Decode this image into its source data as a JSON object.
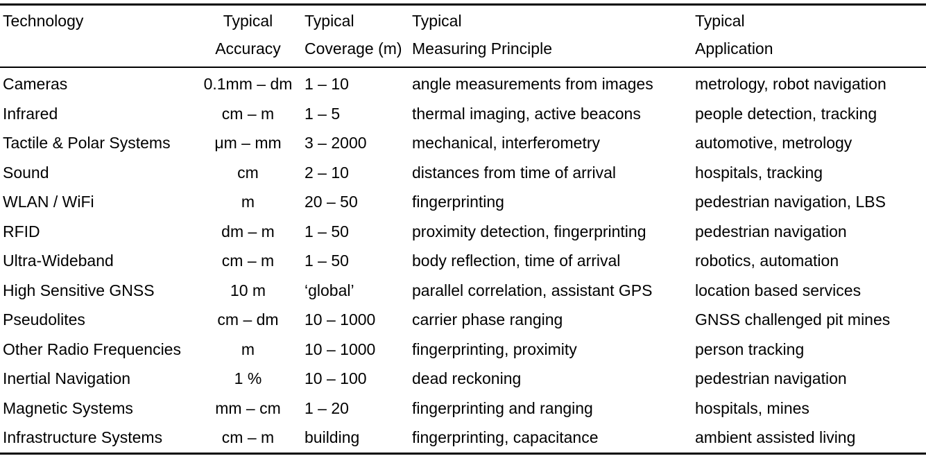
{
  "table": {
    "headers": [
      {
        "line1": "Technology",
        "line2": ""
      },
      {
        "line1": "Typical",
        "line2": "Accuracy"
      },
      {
        "line1": "Typical",
        "line2": "Coverage (m)"
      },
      {
        "line1": "Typical",
        "line2": "Measuring Principle"
      },
      {
        "line1": "Typical",
        "line2": "Application"
      }
    ],
    "rows": [
      [
        "Cameras",
        "0.1mm – dm",
        "1 – 10",
        "angle measurements from images",
        "metrology, robot navigation"
      ],
      [
        "Infrared",
        "cm – m",
        "1 – 5",
        "thermal imaging, active beacons",
        "people detection, tracking"
      ],
      [
        "Tactile & Polar Systems",
        "μm – mm",
        "3 – 2000",
        "mechanical, interferometry",
        "automotive, metrology"
      ],
      [
        "Sound",
        "cm",
        "2 – 10",
        "distances from time of arrival",
        "hospitals, tracking"
      ],
      [
        "WLAN / WiFi",
        "m",
        "20 – 50",
        "fingerprinting",
        "pedestrian navigation, LBS"
      ],
      [
        "RFID",
        "dm – m",
        "1 – 50",
        "proximity detection, fingerprinting",
        "pedestrian navigation"
      ],
      [
        "Ultra-Wideband",
        "cm – m",
        "1 – 50",
        "body reflection, time of arrival",
        "robotics, automation"
      ],
      [
        "High Sensitive GNSS",
        "10 m",
        "‘global’",
        "parallel correlation, assistant GPS",
        "location based services"
      ],
      [
        "Pseudolites",
        "cm – dm",
        "10 – 1000",
        "carrier phase ranging",
        "GNSS challenged pit mines"
      ],
      [
        "Other Radio Frequencies",
        "m",
        "10 – 1000",
        "fingerprinting, proximity",
        "person tracking"
      ],
      [
        "Inertial Navigation",
        "1 %",
        "10 – 100",
        "dead reckoning",
        "pedestrian navigation"
      ],
      [
        "Magnetic Systems",
        "mm – cm",
        "1 – 20",
        "fingerprinting and ranging",
        "hospitals, mines"
      ],
      [
        "Infrastructure Systems",
        "cm – m",
        "building",
        "fingerprinting, capacitance",
        "ambient assisted living"
      ]
    ]
  }
}
